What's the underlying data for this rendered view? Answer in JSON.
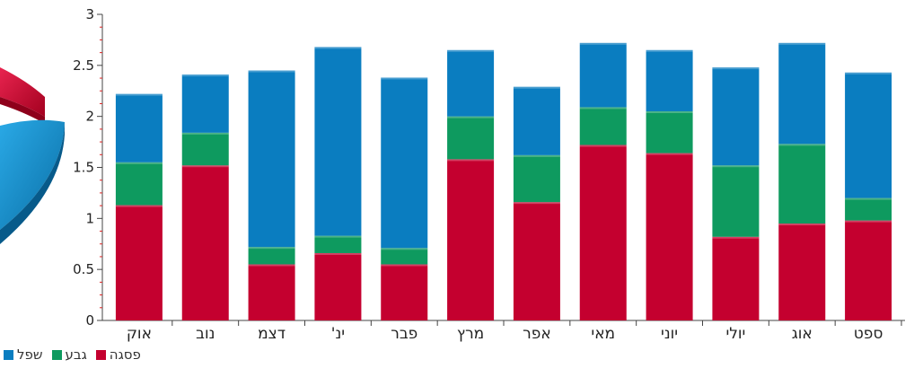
{
  "chart_data": {
    "type": "bar",
    "stacked": true,
    "categories": [
      "אוק",
      "נוב",
      "דצמ",
      "ינ'",
      "פבר",
      "מרץ",
      "אפר",
      "מאי",
      "יוני",
      "יולי",
      "אוג",
      "ספט"
    ],
    "series": [
      {
        "name": "פסגה",
        "color": "#c4002f",
        "values": [
          1.13,
          1.52,
          0.55,
          0.66,
          0.55,
          1.58,
          1.16,
          1.72,
          1.64,
          0.82,
          0.95,
          0.98
        ]
      },
      {
        "name": "גבע",
        "color": "#0e9a5f",
        "values": [
          0.42,
          0.32,
          0.17,
          0.17,
          0.16,
          0.42,
          0.46,
          0.37,
          0.41,
          0.7,
          0.78,
          0.22
        ]
      },
      {
        "name": "שפל",
        "color": "#0a7dc0",
        "values": [
          0.67,
          0.57,
          1.73,
          1.85,
          1.67,
          0.65,
          0.67,
          0.63,
          0.6,
          0.96,
          0.99,
          1.23
        ]
      }
    ],
    "ylim": [
      0,
      3
    ],
    "yticks": [
      "0",
      "0.5",
      "1",
      "1.5",
      "2",
      "2.5",
      "3"
    ],
    "grid": false,
    "legend_position": "bottom-left"
  },
  "colors": {
    "pie_red": "#d0103e",
    "pie_blue": "#1796d4"
  }
}
